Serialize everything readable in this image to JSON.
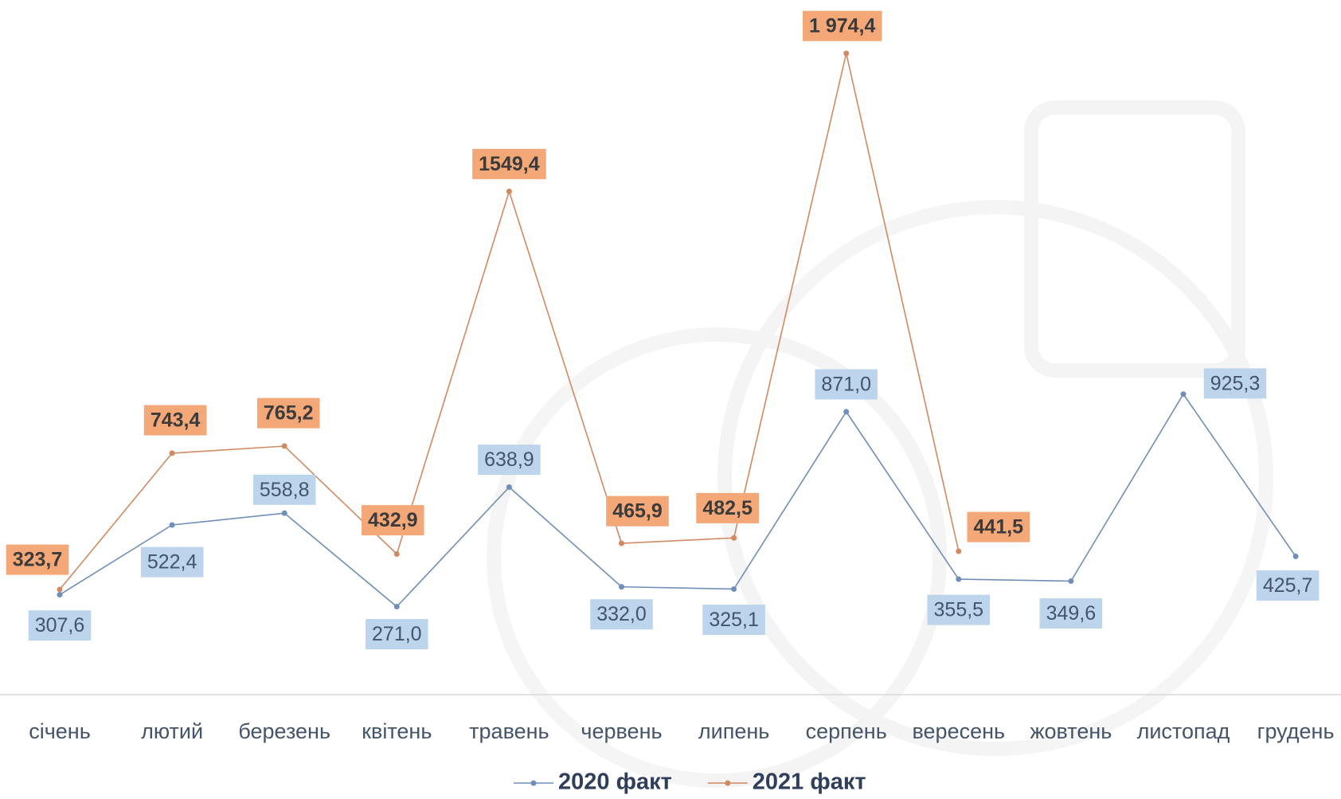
{
  "chart_data": {
    "type": "line",
    "categories": [
      "січень",
      "лютий",
      "березень",
      "квітень",
      "травень",
      "червень",
      "липень",
      "серпень",
      "вересень",
      "жовтень",
      "листопад",
      "грудень"
    ],
    "series": [
      {
        "name": "2020 факт",
        "color": "#6f8fb8",
        "label_color": "#bcd5ec",
        "values": [
          307.6,
          522.4,
          558.8,
          271.0,
          638.9,
          332.0,
          325.1,
          871.0,
          355.5,
          349.6,
          925.3,
          425.7
        ],
        "value_labels": [
          "307,6",
          "522,4",
          "558,8",
          "271,0",
          "638,9",
          "332,0",
          "325,1",
          "871,0",
          "355,5",
          "349,6",
          "925,3",
          "425,7"
        ]
      },
      {
        "name": "2021 факт",
        "color": "#d08a62",
        "label_color": "#f4a777",
        "values": [
          323.7,
          743.4,
          765.2,
          432.9,
          1549.4,
          465.9,
          482.5,
          1974.4,
          441.5,
          null,
          null,
          null
        ],
        "value_labels": [
          "323,7",
          "743,4",
          "765,2",
          "432,9",
          "1549,4",
          "465,9",
          "482,5",
          "1 974,4",
          "441,5",
          null,
          null,
          null
        ]
      }
    ]
  }
}
